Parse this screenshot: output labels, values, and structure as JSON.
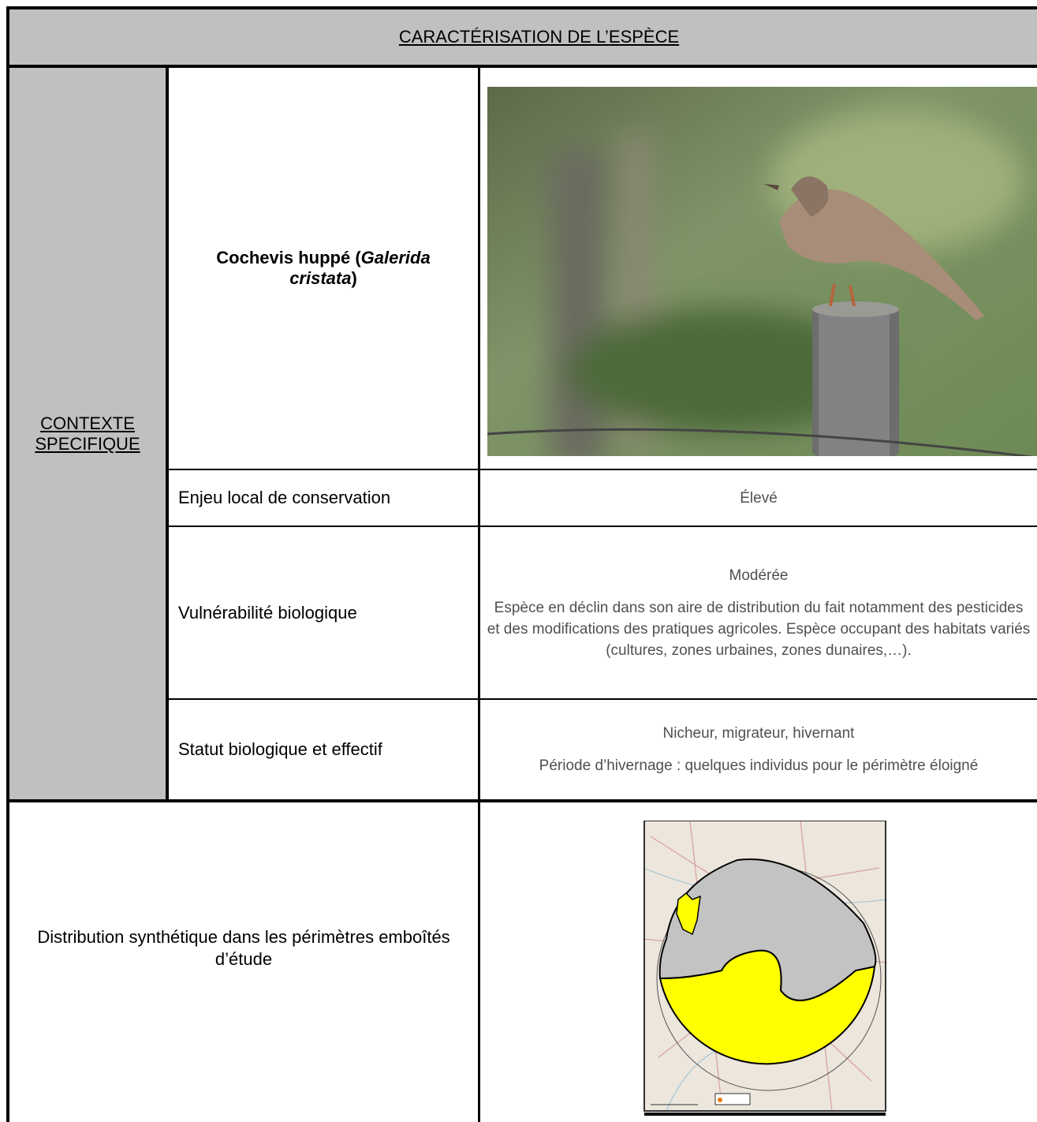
{
  "header": {
    "title": "CARACTÉRISATION DE L’ESPÈCE"
  },
  "context_label": "CONTEXTE SPECIFIQUE",
  "species": {
    "name_parts": [
      "Cochevis huppé (",
      "Galerida cristata",
      ")"
    ]
  },
  "rows": [
    {
      "label": "Enjeu local de conservation",
      "lines": [
        "Élevé"
      ]
    },
    {
      "label": "Vulnérabilité biologique",
      "lines": [
        "Modérée",
        "Espèce en déclin dans son aire de distribution du fait notamment des pesticides et des modifications des pratiques agricoles. Espèce occupant des habitats variés (cultures, zones urbaines, zones dunaires,…)."
      ]
    },
    {
      "label": "Statut biologique et effectif",
      "lines": [
        "Nicheur, migrateur, hivernant",
        "Période d’hivernage : quelques individus pour le périmètre éloigné"
      ]
    }
  ],
  "distribution": {
    "label": "Distribution synthétique dans les périmètres emboîtés d’étude"
  }
}
